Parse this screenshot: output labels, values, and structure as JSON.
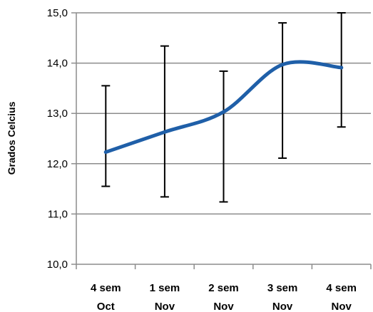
{
  "chart_data": {
    "type": "line",
    "title": "",
    "xlabel": "",
    "ylabel": "Grados Celcius",
    "ylim": [
      10.0,
      15.0
    ],
    "y_ticks": [
      "10,0",
      "11,0",
      "12,0",
      "13,0",
      "14,0",
      "15,0"
    ],
    "y_tick_values": [
      10.0,
      11.0,
      12.0,
      13.0,
      14.0,
      15.0
    ],
    "grid": "horizontal",
    "legend": "none",
    "smooth": true,
    "categories": [
      [
        "4 sem",
        "Oct"
      ],
      [
        "1 sem",
        "Nov"
      ],
      [
        "2 sem",
        "Nov"
      ],
      [
        "3 sem",
        "Nov"
      ],
      [
        "4 sem",
        "Nov"
      ]
    ],
    "series": [
      {
        "values": [
          12.23,
          12.63,
          13.03,
          13.97,
          13.91
        ],
        "error_low": [
          11.55,
          11.34,
          11.24,
          12.11,
          12.73
        ],
        "error_high": [
          13.55,
          14.34,
          13.84,
          14.8,
          15.0
        ],
        "color": "#1f5fa8"
      }
    ],
    "colors": {
      "line": "#1f5fa8",
      "error_bar": "#000000",
      "grid": "#8c8c8c",
      "axis": "#8c8c8c"
    }
  }
}
